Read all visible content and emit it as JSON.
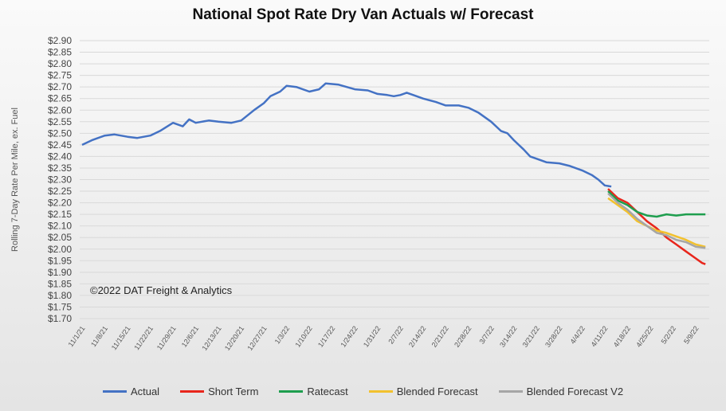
{
  "chart_data": {
    "type": "line",
    "title": "National Spot Rate Dry Van Actuals w/ Forecast",
    "ylabel": "Rolling 7-Day Rate Per Mile, ex. Fuel",
    "xlabel": "",
    "ylim": [
      1.7,
      2.9
    ],
    "ystep": 0.05,
    "grid": true,
    "legend": "bottom",
    "annotation": "©2022 DAT Freight & Analytics",
    "x_ticks": [
      "11/1/21",
      "11/8/21",
      "11/15/21",
      "11/22/21",
      "11/29/21",
      "12/6/21",
      "12/13/21",
      "12/20/21",
      "12/27/21",
      "1/3/22",
      "1/10/22",
      "1/17/22",
      "1/24/22",
      "1/31/22",
      "2/7/22",
      "2/14/22",
      "2/21/22",
      "2/28/22",
      "3/7/22",
      "3/14/22",
      "3/21/22",
      "3/28/22",
      "4/4/22",
      "4/11/22",
      "4/18/22",
      "4/25/22",
      "5/2/22",
      "5/9/22"
    ],
    "series": [
      {
        "name": "Actual",
        "color": "#4472C4",
        "x": [
          "11/1/21",
          "11/4/21",
          "11/8/21",
          "11/11/21",
          "11/15/21",
          "11/18/21",
          "11/22/21",
          "11/25/21",
          "11/29/21",
          "12/2/21",
          "12/4/21",
          "12/6/21",
          "12/10/21",
          "12/13/21",
          "12/17/21",
          "12/20/21",
          "12/24/21",
          "12/27/21",
          "12/29/21",
          "1/1/22",
          "1/3/22",
          "1/6/22",
          "1/10/22",
          "1/13/22",
          "1/15/22",
          "1/19/22",
          "1/24/22",
          "1/28/22",
          "1/31/22",
          "2/3/22",
          "2/5/22",
          "2/7/22",
          "2/9/22",
          "2/11/22",
          "2/14/22",
          "2/18/22",
          "2/21/22",
          "2/25/22",
          "2/28/22",
          "3/3/22",
          "3/7/22",
          "3/10/22",
          "3/12/22",
          "3/14/22",
          "3/17/22",
          "3/19/22",
          "3/21/22",
          "3/24/22",
          "3/28/22",
          "3/31/22",
          "4/4/22",
          "4/7/22",
          "4/9/22",
          "4/11/22",
          "4/13/22"
        ],
        "y": [
          2.45,
          2.47,
          2.49,
          2.495,
          2.485,
          2.48,
          2.49,
          2.51,
          2.545,
          2.53,
          2.56,
          2.545,
          2.555,
          2.55,
          2.545,
          2.555,
          2.6,
          2.63,
          2.66,
          2.68,
          2.705,
          2.7,
          2.68,
          2.69,
          2.715,
          2.71,
          2.69,
          2.685,
          2.67,
          2.665,
          2.66,
          2.665,
          2.675,
          2.665,
          2.65,
          2.635,
          2.62,
          2.62,
          2.61,
          2.59,
          2.55,
          2.51,
          2.5,
          2.47,
          2.43,
          2.4,
          2.39,
          2.375,
          2.37,
          2.36,
          2.34,
          2.32,
          2.3,
          2.275,
          2.27
        ]
      },
      {
        "name": "Short Term",
        "color": "#E8261C",
        "x": [
          "4/12/22",
          "4/15/22",
          "4/18/22",
          "4/21/22",
          "4/24/22",
          "4/27/22",
          "4/30/22",
          "5/3/22",
          "5/6/22",
          "5/9/22",
          "5/11/22",
          "5/12/22"
        ],
        "y": [
          2.26,
          2.22,
          2.2,
          2.16,
          2.12,
          2.09,
          2.05,
          2.02,
          1.99,
          1.96,
          1.94,
          1.935
        ]
      },
      {
        "name": "Ratecast",
        "color": "#1E9E4E",
        "x": [
          "4/12/22",
          "4/15/22",
          "4/18/22",
          "4/21/22",
          "4/24/22",
          "4/27/22",
          "4/30/22",
          "5/3/22",
          "5/6/22",
          "5/9/22",
          "5/12/22"
        ],
        "y": [
          2.25,
          2.21,
          2.19,
          2.16,
          2.145,
          2.14,
          2.15,
          2.145,
          2.15,
          2.15,
          2.15
        ]
      },
      {
        "name": "Blended Forecast",
        "color": "#F2C12E",
        "x": [
          "4/12/22",
          "4/15/22",
          "4/18/22",
          "4/21/22",
          "4/24/22",
          "4/27/22",
          "4/30/22",
          "5/3/22",
          "5/6/22",
          "5/9/22",
          "5/12/22"
        ],
        "y": [
          2.22,
          2.19,
          2.16,
          2.12,
          2.1,
          2.08,
          2.07,
          2.055,
          2.04,
          2.02,
          2.01
        ]
      },
      {
        "name": "Blended Forecast V2",
        "color": "#A6A6A6",
        "x": [
          "4/12/22",
          "4/15/22",
          "4/18/22",
          "4/21/22",
          "4/24/22",
          "4/27/22",
          "4/30/22",
          "5/3/22",
          "5/6/22",
          "5/9/22",
          "5/12/22"
        ],
        "y": [
          2.24,
          2.2,
          2.17,
          2.13,
          2.1,
          2.07,
          2.06,
          2.04,
          2.03,
          2.01,
          2.005
        ]
      }
    ]
  }
}
